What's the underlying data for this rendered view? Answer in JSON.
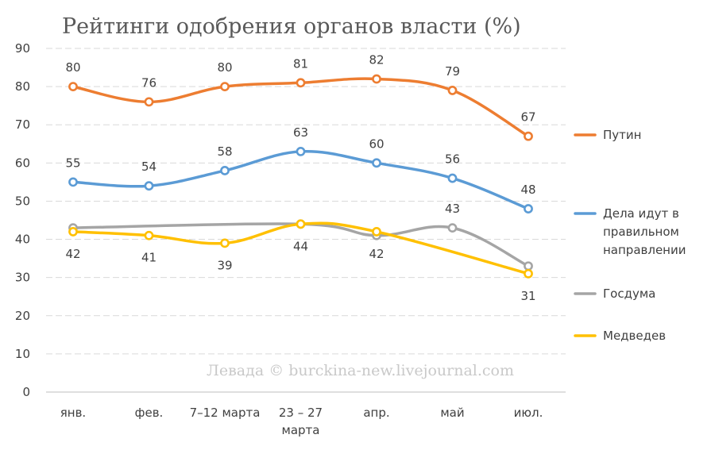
{
  "chart_data": {
    "type": "line",
    "title": "Рейтинги одобрения органов власти (%)",
    "categories": [
      [
        "янв."
      ],
      [
        "фев."
      ],
      [
        "7–12 марта"
      ],
      [
        "23 – 27",
        "марта"
      ],
      [
        "апр."
      ],
      [
        "май"
      ],
      [
        "июл."
      ]
    ],
    "ylim": [
      0,
      90
    ],
    "yticks": [
      0,
      10,
      20,
      30,
      40,
      50,
      60,
      70,
      80,
      90
    ],
    "grid": true,
    "legend_position": "right",
    "series": [
      {
        "name": "Путин",
        "color": "#ED7D31",
        "values": [
          80,
          76,
          80,
          81,
          82,
          79,
          67
        ],
        "labels": [
          "80",
          "76",
          "80",
          "81",
          "82",
          "79",
          "67"
        ],
        "label_pos": "above"
      },
      {
        "name": "Дела идут в правильном направлении",
        "legend_lines": [
          "Дела идут в",
          "правильном",
          "направлении"
        ],
        "color": "#5B9BD5",
        "values": [
          55,
          54,
          58,
          63,
          60,
          56,
          48
        ],
        "labels": [
          "55",
          "54",
          "58",
          "63",
          "60",
          "56",
          "48"
        ],
        "label_pos": "above"
      },
      {
        "name": "Госдума",
        "color": "#A5A5A5",
        "values": [
          43,
          null,
          null,
          44,
          41,
          43,
          33
        ],
        "labels": [
          null,
          null,
          null,
          null,
          null,
          "43",
          null
        ],
        "label_pos": "above"
      },
      {
        "name": "Медведев",
        "color": "#FFC000",
        "values": [
          42,
          41,
          39,
          44,
          42,
          null,
          31
        ],
        "labels": [
          "42",
          "41",
          "39",
          "44",
          "42",
          null,
          "31"
        ],
        "label_pos": "below"
      }
    ],
    "watermark": "Левада © burckina-new.livejournal.com"
  }
}
